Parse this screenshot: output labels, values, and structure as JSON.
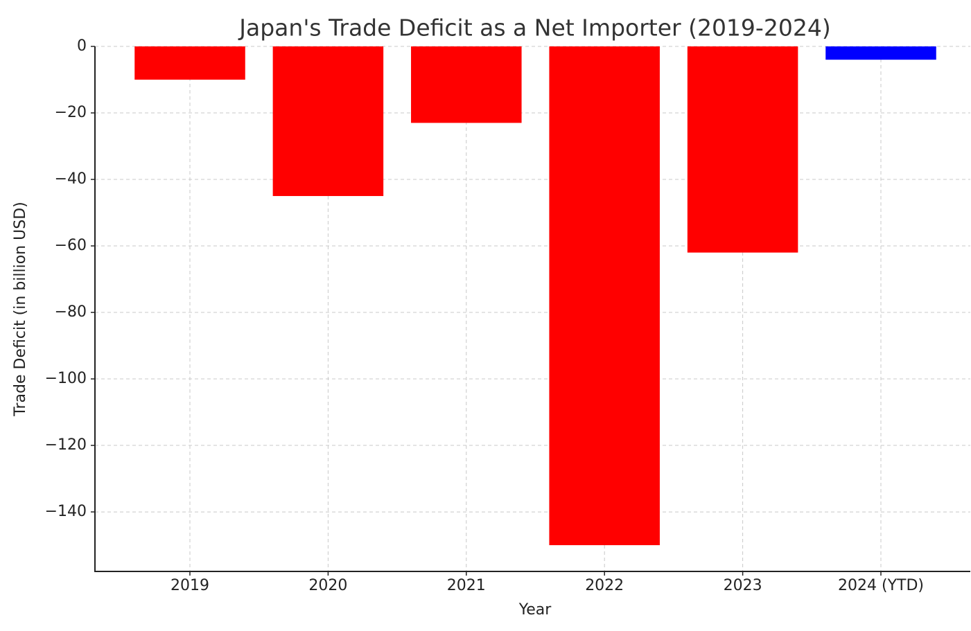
{
  "chart_data": {
    "type": "bar",
    "title": "Japan's Trade Deficit as a Net Importer (2019-2024)",
    "x_label": "Year",
    "y_label": "Trade Deficit (in billion USD)",
    "categories": [
      "2019",
      "2020",
      "2021",
      "2022",
      "2023",
      "2024 (YTD)"
    ],
    "values": [
      -10,
      -45,
      -23,
      -150,
      -62,
      -4
    ],
    "colors": [
      "#ff0000",
      "#ff0000",
      "#ff0000",
      "#ff0000",
      "#ff0000",
      "#0000ff"
    ],
    "ylim": [
      -157.9,
      0
    ],
    "yticks": [
      0,
      {
        "value": -20,
        "label": "−20"
      },
      {
        "value": -40,
        "label": "−40"
      },
      {
        "value": -60,
        "label": "−60"
      },
      {
        "value": -80,
        "label": "−80"
      },
      {
        "value": -100,
        "label": "−100"
      },
      {
        "value": -120,
        "label": "−120"
      },
      {
        "value": -140,
        "label": "−140"
      }
    ],
    "grid": true
  }
}
